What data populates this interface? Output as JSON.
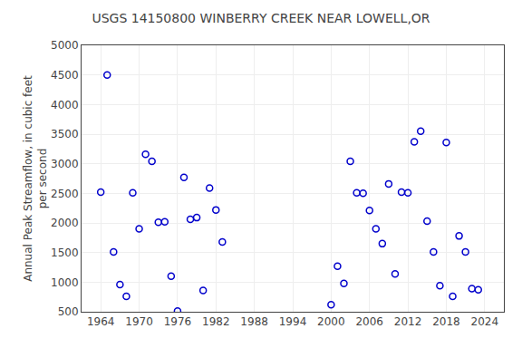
{
  "chart_data": {
    "type": "scatter",
    "title": "USGS 14150800 WINBERRY CREEK NEAR LOWELL,OR",
    "ylabel": "Annual Peak Streamflow, in cubic feet\n per second",
    "xlim": [
      1961,
      2027
    ],
    "ylim": [
      500,
      5000
    ],
    "xticks": [
      1964,
      1970,
      1976,
      1982,
      1988,
      1994,
      2000,
      2006,
      2012,
      2018,
      2024
    ],
    "yticks": [
      500,
      1000,
      1500,
      2000,
      2500,
      3000,
      3500,
      4000,
      4500,
      5000
    ],
    "color": "#0000cc",
    "marker": "circle-open",
    "grid": true,
    "x": [
      1964,
      1965,
      1966,
      1967,
      1968,
      1969,
      1970,
      1971,
      1972,
      1973,
      1974,
      1975,
      1976,
      1977,
      1978,
      1979,
      1980,
      1981,
      1982,
      1983,
      2000,
      2001,
      2002,
      2003,
      2004,
      2005,
      2006,
      2007,
      2008,
      2009,
      2010,
      2011,
      2012,
      2013,
      2014,
      2015,
      2016,
      2017,
      2018,
      2019,
      2020,
      2021,
      2022,
      2023
    ],
    "values": [
      2520,
      4500,
      1510,
      960,
      760,
      2510,
      1900,
      3160,
      3040,
      2010,
      2020,
      1100,
      510,
      2770,
      2060,
      2090,
      860,
      2590,
      2220,
      1680,
      620,
      1270,
      980,
      3040,
      2510,
      2500,
      2210,
      1900,
      1650,
      2660,
      1140,
      2520,
      2510,
      3370,
      3550,
      2030,
      1510,
      940,
      3360,
      760,
      1780,
      1510,
      890,
      870
    ]
  }
}
